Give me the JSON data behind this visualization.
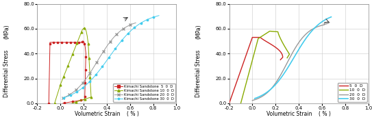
{
  "fig_width": 5.43,
  "fig_height": 1.84,
  "dpi": 100,
  "ylabel_top": "(MPa)",
  "ylabel_bot": "Differential Stress",
  "xlabel": "Volumetric Strain",
  "xlabel2": "( % )",
  "xlim": [
    -0.2,
    1.0
  ],
  "ylim": [
    0.0,
    80.0
  ],
  "yticks": [
    0.0,
    20.0,
    40.0,
    60.0,
    80.0
  ],
  "xticks": [
    -0.2,
    0.0,
    0.2,
    0.4,
    0.6,
    0.8,
    1.0
  ],
  "colors": {
    "5D": "#cc2222",
    "10D": "#88aa00",
    "20D": "#999999",
    "30D": "#44ccee"
  },
  "legend_left": [
    "Kimachi Sandstone  5  0  D",
    "Kimachi Sandstone 10  0  D",
    "Kimachi Sandstone 20  0  D",
    "Kimachi Sandstone 30  0  D"
  ],
  "legend_right": [
    "5  0  D",
    "10  0  D",
    "20  0  D",
    "30  0  D"
  ],
  "bg_color": "#ffffff",
  "grid_color": "#c8c8c8"
}
